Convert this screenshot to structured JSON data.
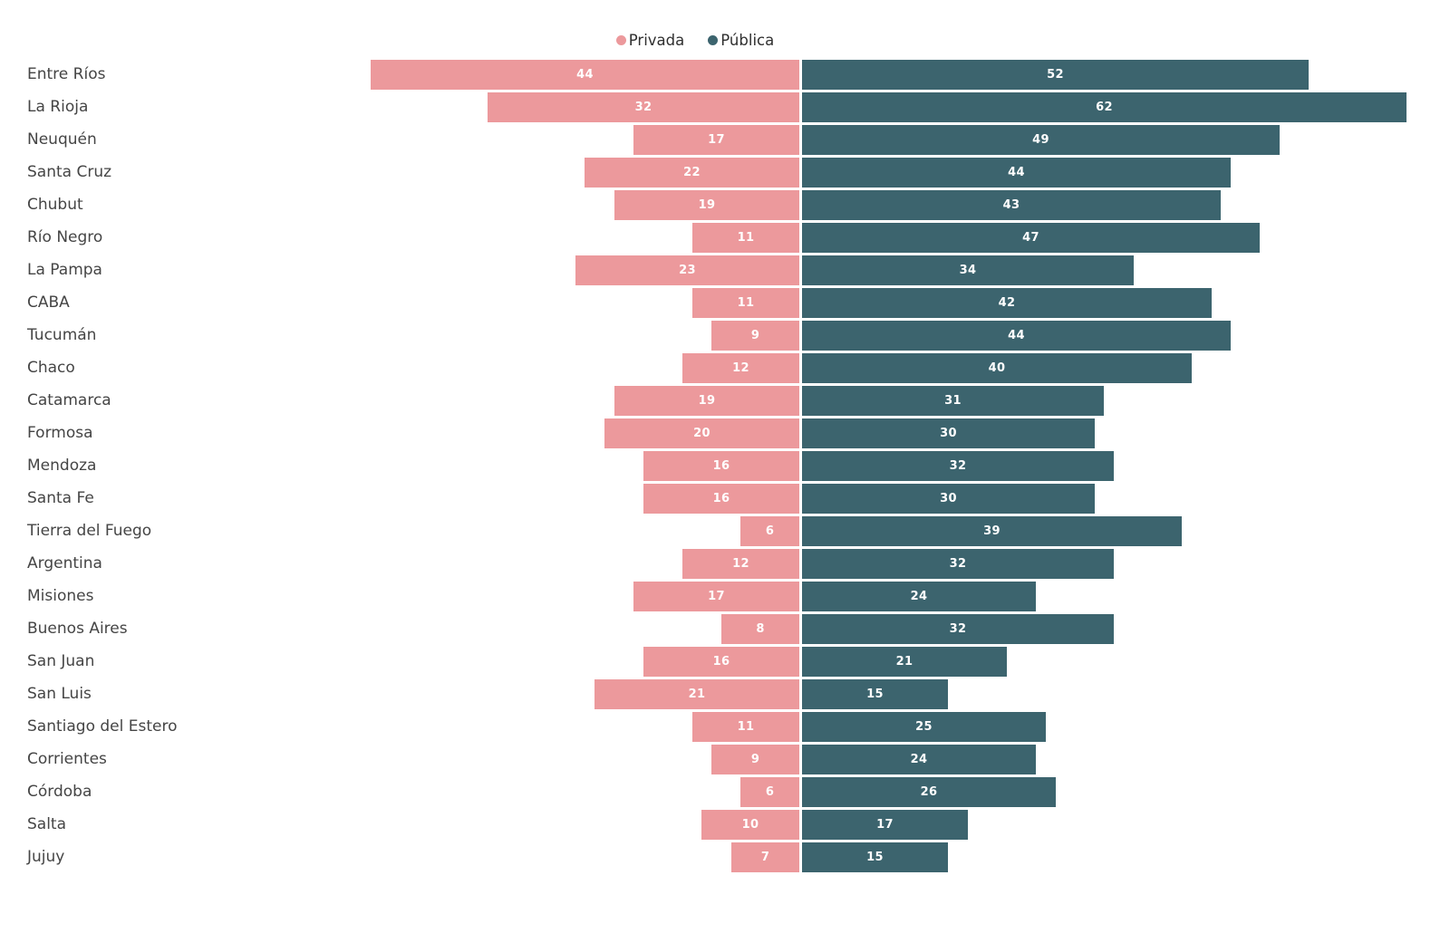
{
  "colors": {
    "background": "#ffffff",
    "privada": "#ec999c",
    "publica": "#3c646e",
    "category_label": "#454545",
    "value_label": "#ffffff",
    "legend_text": "#2f2f2f"
  },
  "chart_data": {
    "type": "bar",
    "orientation": "horizontal",
    "diverging": true,
    "grid": false,
    "legend_position": "top-center",
    "value_labels": "inside-center",
    "title": "",
    "xlabel": "",
    "ylabel": "",
    "categories": [
      "Entre Ríos",
      "La Rioja",
      "Neuquén",
      "Santa Cruz",
      "Chubut",
      "Río Negro",
      "La Pampa",
      "CABA",
      "Tucumán",
      "Chaco",
      "Catamarca",
      "Formosa",
      "Mendoza",
      "Santa Fe",
      "Tierra del Fuego",
      "Argentina",
      "Misiones",
      "Buenos Aires",
      "San Juan",
      "San Luis",
      "Santiago del Estero",
      "Corrientes",
      "Córdoba",
      "Salta",
      "Jujuy"
    ],
    "series": [
      {
        "name": "Privada",
        "color": "#ec999c",
        "direction": "left",
        "values": [
          44,
          32,
          17,
          22,
          19,
          11,
          23,
          11,
          9,
          12,
          19,
          20,
          16,
          16,
          6,
          12,
          17,
          8,
          16,
          21,
          11,
          9,
          6,
          10,
          7
        ]
      },
      {
        "name": "Pública",
        "color": "#3c646e",
        "direction": "right",
        "values": [
          52,
          62,
          49,
          44,
          43,
          47,
          34,
          42,
          44,
          40,
          31,
          30,
          32,
          30,
          39,
          32,
          24,
          32,
          21,
          15,
          25,
          24,
          26,
          17,
          15
        ]
      }
    ]
  }
}
